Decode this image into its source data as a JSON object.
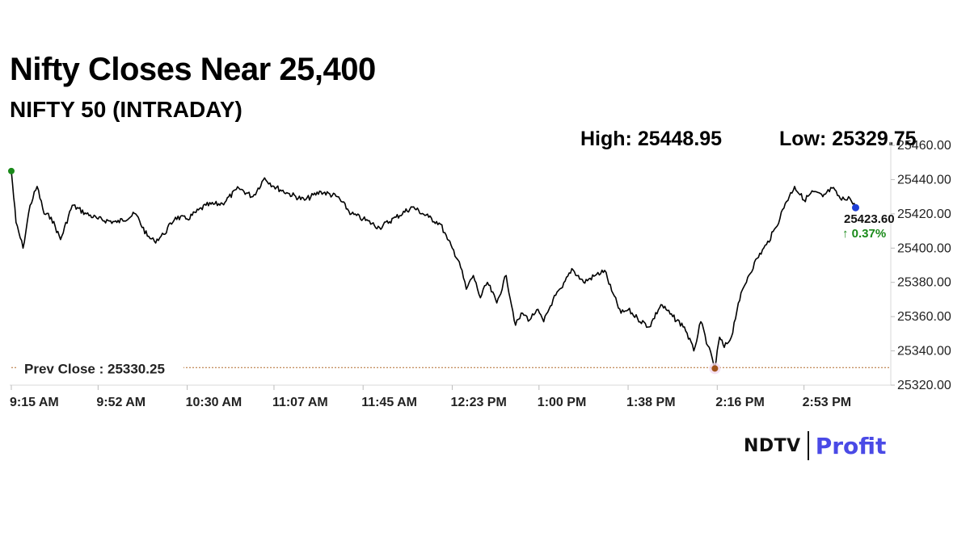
{
  "header": {
    "title": "Nifty Closes Near 25,400",
    "subtitle": "NIFTY 50 (INTRADAY)",
    "high_text": "High: 25448.95",
    "low_text": "Low: 25329.75"
  },
  "prev_close_label": "Prev Close : 25330.25",
  "last_value_label": "25423.60",
  "change_label": "↑ 0.37%",
  "logo": {
    "left": "NDTV",
    "right": "Profit"
  },
  "colors": {
    "line": "#000000",
    "prev_close": "#b06a2a",
    "up": "#1a8a1a",
    "start_marker": "#1a8a1a",
    "low_marker": "#a0521a",
    "end_marker": "#1f3fd6",
    "brand": "#4a4ae6"
  },
  "chart_data": {
    "type": "line",
    "title": "NIFTY 50 (INTRADAY)",
    "xlabel": "",
    "ylabel": "",
    "x_ticks": [
      "9:15 AM",
      "9:52 AM",
      "10:30 AM",
      "11:07 AM",
      "11:45 AM",
      "12:23 PM",
      "1:00 PM",
      "1:38 PM",
      "2:16 PM",
      "2:53 PM"
    ],
    "y_ticks": [
      "25320.00",
      "25340.00",
      "25360.00",
      "25380.00",
      "25400.00",
      "25420.00",
      "25440.00",
      "25460.00"
    ],
    "ylim": [
      25320,
      25460
    ],
    "prev_close": 25330.25,
    "high": 25448.95,
    "low": 25329.75,
    "last": 25423.6,
    "change_pct": 0.37,
    "series": [
      {
        "x": [
          "9:15 AM",
          "9:17 AM",
          "9:20 AM",
          "9:23 AM",
          "9:26 AM",
          "9:29 AM",
          "9:32 AM",
          "9:36 AM",
          "9:41 AM",
          "9:47 AM",
          "9:52 AM",
          "10:00 AM",
          "10:08 AM",
          "10:13 AM",
          "10:16 AM",
          "10:20 AM",
          "10:25 AM",
          "10:30 AM",
          "10:38 AM",
          "10:45 AM",
          "10:52 AM",
          "10:58 AM",
          "11:03 AM",
          "11:07 AM",
          "11:13 AM",
          "11:20 AM",
          "11:27 AM",
          "11:34 AM",
          "11:40 AM",
          "11:45 AM",
          "11:52 AM",
          "11:59 AM",
          "12:06 PM",
          "12:13 PM",
          "12:18 PM",
          "12:21 PM",
          "12:23 PM",
          "12:26 PM",
          "12:29 PM",
          "12:32 PM",
          "12:35 PM",
          "12:38 PM",
          "12:42 PM",
          "12:46 PM",
          "12:50 PM",
          "12:53 PM",
          "12:56 PM",
          "12:59 PM",
          "1:02 PM",
          "1:06 PM",
          "1:10 PM",
          "1:14 PM",
          "1:19 PM",
          "1:24 PM",
          "1:28 PM",
          "1:31 PM",
          "1:35 PM",
          "1:38 PM",
          "1:42 PM",
          "1:47 PM",
          "1:52 PM",
          "1:57 PM",
          "2:02 PM",
          "2:06 PM",
          "2:09 PM",
          "2:12 PM",
          "2:15 PM",
          "2:17 PM",
          "2:19 PM",
          "2:22 PM",
          "2:25 PM",
          "2:29 PM",
          "2:33 PM",
          "2:37 PM",
          "2:41 PM",
          "2:45 PM",
          "2:49 PM",
          "2:53 PM",
          "2:57 PM",
          "3:01 PM",
          "3:05 PM",
          "3:09 PM",
          "3:12 PM",
          "3:15 PM"
        ],
        "values": [
          25445,
          25415,
          25400,
          25425,
          25436,
          25420,
          25418,
          25405,
          25425,
          25420,
          25417,
          25415,
          25420,
          25407,
          25404,
          25408,
          25418,
          25417,
          25425,
          25426,
          25435,
          25430,
          25441,
          25436,
          25432,
          25428,
          25433,
          25430,
          25420,
          25417,
          25412,
          25418,
          25424,
          25418,
          25414,
          25405,
          25400,
          25392,
          25376,
          25384,
          25371,
          25380,
          25368,
          25384,
          25355,
          25362,
          25358,
          25364,
          25357,
          25370,
          25377,
          25388,
          25380,
          25384,
          25387,
          25375,
          25362,
          25364,
          25359,
          25354,
          25367,
          25360,
          25354,
          25340,
          25357,
          25343,
          25330,
          25348,
          25342,
          25348,
          25368,
          25383,
          25394,
          25402,
          25412,
          25426,
          25436,
          25428,
          25433,
          25430,
          25435,
          25428,
          25430,
          25423.6
        ]
      }
    ]
  }
}
